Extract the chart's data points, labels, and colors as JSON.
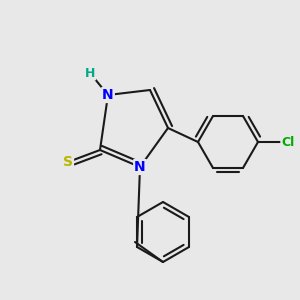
{
  "background_color": "#e8e8e8",
  "bond_color": "#1a1a1a",
  "bond_width": 1.5,
  "atom_colors": {
    "N": "#0000ff",
    "S": "#b8b800",
    "Cl": "#00aa00",
    "H": "#00aa88",
    "C": "#1a1a1a"
  },
  "figsize": [
    3.0,
    3.0
  ],
  "dpi": 100
}
